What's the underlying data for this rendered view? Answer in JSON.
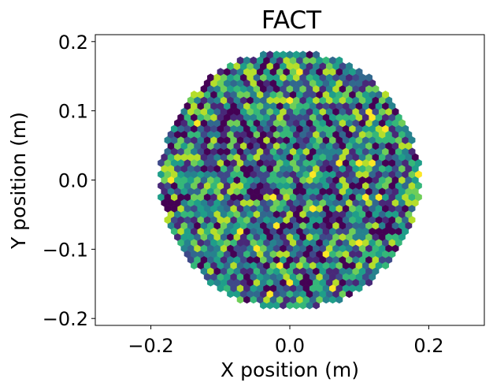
{
  "chart_data": {
    "type": "heatmap",
    "title": "FACT",
    "xlabel": "X position (m)",
    "ylabel": "Y position (m)",
    "xlim": [
      -0.28,
      0.28
    ],
    "ylim": [
      -0.21,
      0.21
    ],
    "xticks": [
      {
        "value": -0.2,
        "label": "−0.2"
      },
      {
        "value": 0.0,
        "label": "0.0"
      },
      {
        "value": 0.2,
        "label": "0.2"
      }
    ],
    "yticks": [
      {
        "value": 0.2,
        "label": "0.2"
      },
      {
        "value": 0.1,
        "label": "0.1"
      },
      {
        "value": 0.0,
        "label": "0.0"
      },
      {
        "value": -0.1,
        "label": "−0.1"
      },
      {
        "value": -0.2,
        "label": "−0.2"
      }
    ],
    "grid": false,
    "colormap": "viridis",
    "camera": {
      "shape": "hexagonal-pixels",
      "radius_m": 0.187,
      "pixel_pitch_m": 0.0095
    },
    "colors": {
      "viridis_stops": [
        "#440154",
        "#482878",
        "#3e4989",
        "#31688e",
        "#26828e",
        "#1f9e89",
        "#35b779",
        "#6ece58",
        "#b5de2b",
        "#fde725"
      ]
    }
  }
}
